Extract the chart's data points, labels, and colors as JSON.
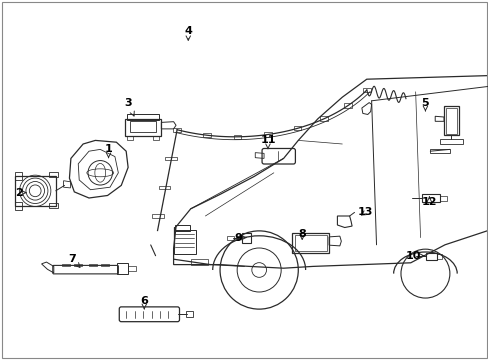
{
  "background_color": "#ffffff",
  "line_color": "#2a2a2a",
  "label_color": "#000000",
  "figsize": [
    4.89,
    3.6
  ],
  "dpi": 100,
  "label_positions": {
    "1": {
      "text": [
        0.222,
        0.415
      ],
      "target": [
        0.222,
        0.44
      ]
    },
    "2": {
      "text": [
        0.038,
        0.535
      ],
      "target": [
        0.055,
        0.535
      ]
    },
    "3": {
      "text": [
        0.262,
        0.285
      ],
      "target": [
        0.275,
        0.325
      ]
    },
    "4": {
      "text": [
        0.385,
        0.085
      ],
      "target": [
        0.385,
        0.115
      ]
    },
    "5": {
      "text": [
        0.87,
        0.285
      ],
      "target": [
        0.87,
        0.31
      ]
    },
    "6": {
      "text": [
        0.295,
        0.835
      ],
      "target": [
        0.295,
        0.86
      ]
    },
    "7": {
      "text": [
        0.148,
        0.72
      ],
      "target": [
        0.165,
        0.745
      ]
    },
    "8": {
      "text": [
        0.618,
        0.65
      ],
      "target": [
        0.618,
        0.668
      ]
    },
    "9": {
      "text": [
        0.488,
        0.66
      ],
      "target": [
        0.505,
        0.66
      ]
    },
    "10": {
      "text": [
        0.845,
        0.71
      ],
      "target": [
        0.868,
        0.71
      ]
    },
    "11": {
      "text": [
        0.548,
        0.39
      ],
      "target": [
        0.548,
        0.415
      ]
    },
    "12": {
      "text": [
        0.878,
        0.56
      ],
      "target": [
        0.878,
        0.545
      ]
    },
    "13": {
      "text": [
        0.748,
        0.59
      ],
      "target": [
        0.73,
        0.605
      ]
    }
  }
}
